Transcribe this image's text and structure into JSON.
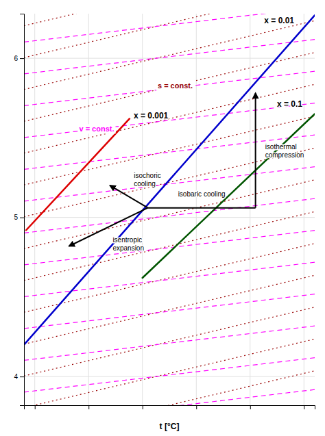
{
  "chart_data": {
    "type": "line",
    "xlabel": "t [°C]",
    "xlim": [
      -60,
      210
    ],
    "ylim": [
      3.82,
      6.28
    ],
    "xticks": [
      -50,
      0,
      50,
      100,
      150,
      200
    ],
    "yticks": [
      4,
      5,
      6
    ],
    "tick_labels": "y",
    "grid": true,
    "series": [
      {
        "name": "x = 0.001",
        "color": "#dd0000",
        "x": [
          -58,
          38
        ],
        "values": [
          4.92,
          5.62
        ]
      },
      {
        "name": "x = 0.01",
        "color": "#0000cc",
        "x": [
          -60,
          210
        ],
        "values": [
          4.2,
          6.27
        ]
      },
      {
        "name": "x = 0.1",
        "color": "#005500",
        "x": [
          50,
          210
        ],
        "values": [
          4.62,
          5.65
        ]
      }
    ],
    "reference_lines": [
      {
        "name": "s = const.",
        "color": "#990000",
        "line_style": "dotted",
        "slope": 0.0016,
        "intercepts": [
          3.7,
          3.9,
          4.1,
          4.3,
          4.5,
          4.7,
          4.9,
          5.1,
          5.3,
          5.5,
          5.7,
          5.9,
          6.1,
          6.3
        ]
      },
      {
        "name": "v = const.",
        "color": "#ff00ff",
        "line_style": "dashed",
        "slope": 0.0008,
        "intercepts": [
          3.75,
          3.95,
          4.15,
          4.35,
          4.55,
          4.75,
          4.95,
          5.15,
          5.35,
          5.55,
          5.75,
          5.95,
          6.15
        ]
      }
    ],
    "processes": [
      {
        "name": "isothermal\ncompression",
        "color": "#000000",
        "marker": "arrow",
        "x": [
          155,
          155
        ],
        "values": [
          5.06,
          5.78
        ]
      },
      {
        "name": "isobaric cooling",
        "color": "#000000",
        "x": [
          55,
          155
        ],
        "values": [
          5.06,
          5.06
        ]
      },
      {
        "name": "isochoric\ncooling",
        "color": "#000000",
        "marker": "arrow",
        "x": [
          55,
          20
        ],
        "values": [
          5.06,
          5.2
        ]
      },
      {
        "name": "isentropic\nexpansion",
        "color": "#000000",
        "marker": "arrow",
        "x": [
          55,
          -18
        ],
        "values": [
          5.06,
          4.82
        ]
      }
    ]
  }
}
